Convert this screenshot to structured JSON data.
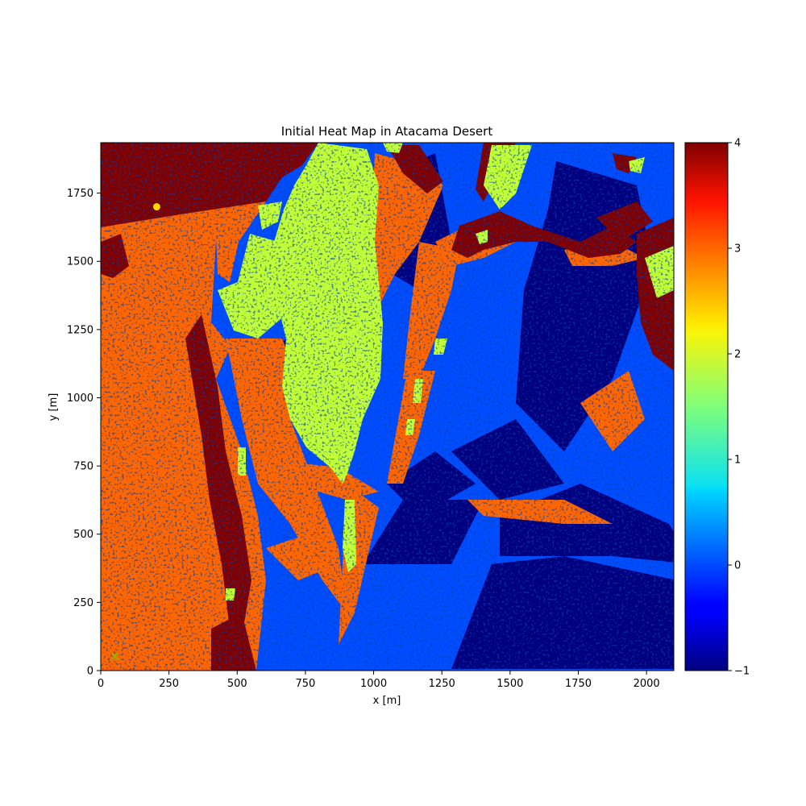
{
  "chart_data": {
    "type": "heatmap",
    "title": "Initial Heat Map in Atacama Desert",
    "xlabel": "x [m]",
    "ylabel": "y [m]",
    "xlim": [
      0,
      2100
    ],
    "ylim": [
      0,
      1935
    ],
    "xticks": [
      0,
      250,
      500,
      750,
      1000,
      1250,
      1500,
      1750,
      2000
    ],
    "yticks": [
      0,
      250,
      500,
      750,
      1000,
      1250,
      1500,
      1750
    ],
    "colorbar": {
      "colormap": "jet",
      "range": [
        -1,
        4
      ],
      "ticks": [
        -1,
        0,
        1,
        2,
        3,
        4
      ],
      "tick_labels": [
        "−1",
        "0",
        "1",
        "2",
        "3",
        "4"
      ]
    },
    "value_colors": {
      "-1": "#00007f",
      "0": "#004dff",
      "2": "#c1ff36",
      "3": "#ff6600",
      "4": "#800000"
    },
    "grid": false,
    "regions": [
      {
        "value": 3,
        "description_x": [
          0,
          560
        ],
        "description_y": [
          0,
          1650
        ]
      },
      {
        "value": 4,
        "description_x": [
          0,
          600
        ],
        "description_y": [
          1650,
          1935
        ]
      },
      {
        "value": 2,
        "description_x": [
          620,
          1030
        ],
        "description_y": [
          720,
          1935
        ]
      },
      {
        "value": -1,
        "description_x": [
          500,
          2100
        ],
        "description_y": [
          0,
          1600
        ]
      },
      {
        "value": 0,
        "description_x": [
          500,
          2100
        ],
        "description_y": [
          0,
          1935
        ]
      }
    ],
    "markers": [
      {
        "name": "start",
        "shape": "circle",
        "x": 205,
        "y": 1700,
        "color": "#ffd700"
      },
      {
        "name": "goal",
        "shape": "x",
        "x": 52,
        "y": 52,
        "color": "#7fbf00"
      }
    ]
  }
}
